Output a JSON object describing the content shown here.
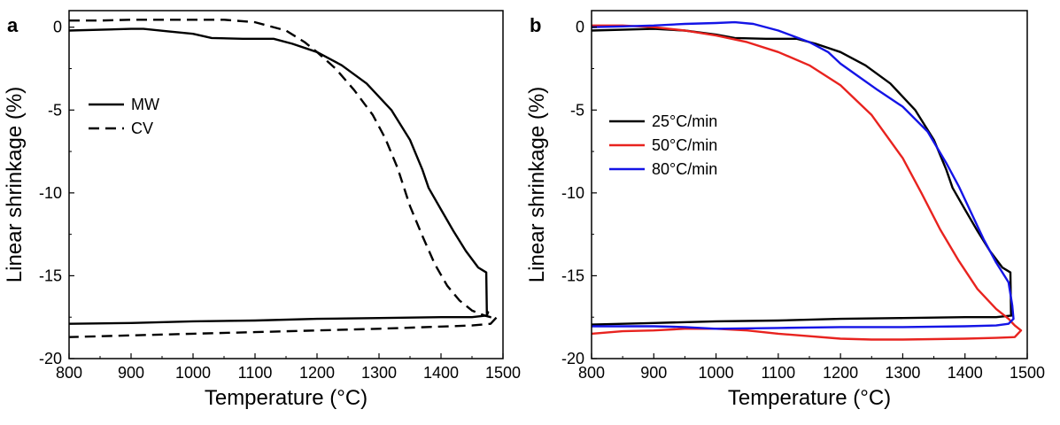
{
  "chart_data": [
    {
      "type": "line",
      "panel_label": "a",
      "xlabel": "Temperature (°C)",
      "ylabel": "Linear shrinkage (%)",
      "xlim": [
        800,
        1500
      ],
      "ylim": [
        -20,
        1
      ],
      "xticks": [
        800,
        900,
        1000,
        1100,
        1200,
        1300,
        1400,
        1500
      ],
      "yticks": [
        0,
        -5,
        -10,
        -15,
        -20
      ],
      "legend_position": "left",
      "series": [
        {
          "name": "MW",
          "color": "#000000",
          "dash": "solid",
          "points": [
            [
              800,
              -0.2
            ],
            [
              900,
              -0.1
            ],
            [
              920,
              -0.1
            ],
            [
              960,
              -0.25
            ],
            [
              1000,
              -0.4
            ],
            [
              1030,
              -0.65
            ],
            [
              1080,
              -0.7
            ],
            [
              1130,
              -0.7
            ],
            [
              1160,
              -1.0
            ],
            [
              1200,
              -1.5
            ],
            [
              1240,
              -2.3
            ],
            [
              1280,
              -3.4
            ],
            [
              1320,
              -5.0
            ],
            [
              1350,
              -6.8
            ],
            [
              1370,
              -8.6
            ],
            [
              1380,
              -9.7
            ],
            [
              1400,
              -11.0
            ],
            [
              1420,
              -12.3
            ],
            [
              1440,
              -13.5
            ],
            [
              1460,
              -14.5
            ],
            [
              1473,
              -14.8
            ],
            [
              1474,
              -17.3
            ],
            [
              1476,
              -17.2
            ],
            [
              1474,
              -17.4
            ],
            [
              1450,
              -17.5
            ],
            [
              1400,
              -17.5
            ],
            [
              1300,
              -17.55
            ],
            [
              1200,
              -17.6
            ],
            [
              1100,
              -17.7
            ],
            [
              1000,
              -17.75
            ],
            [
              900,
              -17.85
            ],
            [
              800,
              -17.9
            ]
          ]
        },
        {
          "name": "CV",
          "color": "#000000",
          "dash": "dashed",
          "points": [
            [
              800,
              0.4
            ],
            [
              850,
              0.4
            ],
            [
              900,
              0.45
            ],
            [
              950,
              0.45
            ],
            [
              1000,
              0.45
            ],
            [
              1050,
              0.45
            ],
            [
              1100,
              0.3
            ],
            [
              1150,
              -0.2
            ],
            [
              1180,
              -0.9
            ],
            [
              1200,
              -1.5
            ],
            [
              1230,
              -2.5
            ],
            [
              1260,
              -3.8
            ],
            [
              1290,
              -5.3
            ],
            [
              1310,
              -6.7
            ],
            [
              1330,
              -8.5
            ],
            [
              1350,
              -10.8
            ],
            [
              1370,
              -12.6
            ],
            [
              1390,
              -14.3
            ],
            [
              1410,
              -15.6
            ],
            [
              1430,
              -16.5
            ],
            [
              1450,
              -17.1
            ],
            [
              1470,
              -17.4
            ],
            [
              1480,
              -17.5
            ],
            [
              1490,
              -17.5
            ],
            [
              1480,
              -17.9
            ],
            [
              1450,
              -18.0
            ],
            [
              1300,
              -18.2
            ],
            [
              1200,
              -18.3
            ],
            [
              1100,
              -18.4
            ],
            [
              1000,
              -18.5
            ],
            [
              900,
              -18.6
            ],
            [
              800,
              -18.7
            ]
          ]
        }
      ]
    },
    {
      "type": "line",
      "panel_label": "b",
      "xlabel": "Temperature (°C)",
      "ylabel": "Linear shrinkage (%)",
      "xlim": [
        800,
        1500
      ],
      "ylim": [
        -20,
        1
      ],
      "xticks": [
        800,
        900,
        1000,
        1100,
        1200,
        1300,
        1400,
        1500
      ],
      "yticks": [
        0,
        -5,
        -10,
        -15,
        -20
      ],
      "legend_position": "left",
      "series": [
        {
          "name": "25°C/min",
          "color": "#000000",
          "dash": "solid",
          "points": [
            [
              800,
              -0.2
            ],
            [
              900,
              -0.1
            ],
            [
              950,
              -0.2
            ],
            [
              1000,
              -0.45
            ],
            [
              1030,
              -0.65
            ],
            [
              1080,
              -0.7
            ],
            [
              1130,
              -0.7
            ],
            [
              1160,
              -1.0
            ],
            [
              1200,
              -1.5
            ],
            [
              1240,
              -2.3
            ],
            [
              1280,
              -3.4
            ],
            [
              1320,
              -5.0
            ],
            [
              1350,
              -6.8
            ],
            [
              1370,
              -8.6
            ],
            [
              1380,
              -9.7
            ],
            [
              1400,
              -11.0
            ],
            [
              1420,
              -12.3
            ],
            [
              1440,
              -13.5
            ],
            [
              1460,
              -14.5
            ],
            [
              1473,
              -14.8
            ],
            [
              1474,
              -17.3
            ],
            [
              1476,
              -17.4
            ],
            [
              1450,
              -17.5
            ],
            [
              1400,
              -17.5
            ],
            [
              1300,
              -17.55
            ],
            [
              1200,
              -17.6
            ],
            [
              1100,
              -17.7
            ],
            [
              1000,
              -17.75
            ],
            [
              900,
              -17.85
            ],
            [
              800,
              -17.95
            ]
          ]
        },
        {
          "name": "50°C/min",
          "color": "#e8231f",
          "dash": "solid",
          "points": [
            [
              800,
              0.1
            ],
            [
              850,
              0.1
            ],
            [
              900,
              0.0
            ],
            [
              950,
              -0.2
            ],
            [
              1000,
              -0.5
            ],
            [
              1050,
              -0.9
            ],
            [
              1100,
              -1.5
            ],
            [
              1150,
              -2.3
            ],
            [
              1200,
              -3.5
            ],
            [
              1250,
              -5.3
            ],
            [
              1300,
              -7.9
            ],
            [
              1330,
              -10.0
            ],
            [
              1360,
              -12.2
            ],
            [
              1390,
              -14.1
            ],
            [
              1420,
              -15.8
            ],
            [
              1450,
              -17.0
            ],
            [
              1470,
              -17.6
            ],
            [
              1480,
              -18.0
            ],
            [
              1490,
              -18.3
            ],
            [
              1480,
              -18.7
            ],
            [
              1450,
              -18.75
            ],
            [
              1400,
              -18.8
            ],
            [
              1300,
              -18.85
            ],
            [
              1250,
              -18.85
            ],
            [
              1200,
              -18.8
            ],
            [
              1100,
              -18.5
            ],
            [
              1050,
              -18.3
            ],
            [
              1000,
              -18.2
            ],
            [
              950,
              -18.2
            ],
            [
              900,
              -18.3
            ],
            [
              850,
              -18.35
            ],
            [
              800,
              -18.5
            ]
          ]
        },
        {
          "name": "80°C/min",
          "color": "#1414e6",
          "dash": "solid",
          "points": [
            [
              800,
              0.0
            ],
            [
              850,
              0.05
            ],
            [
              900,
              0.1
            ],
            [
              950,
              0.2
            ],
            [
              1000,
              0.25
            ],
            [
              1030,
              0.3
            ],
            [
              1060,
              0.2
            ],
            [
              1100,
              -0.2
            ],
            [
              1150,
              -0.9
            ],
            [
              1180,
              -1.5
            ],
            [
              1200,
              -2.2
            ],
            [
              1230,
              -3.0
            ],
            [
              1260,
              -3.8
            ],
            [
              1300,
              -4.8
            ],
            [
              1340,
              -6.3
            ],
            [
              1370,
              -8.2
            ],
            [
              1390,
              -9.6
            ],
            [
              1410,
              -11.2
            ],
            [
              1430,
              -12.8
            ],
            [
              1450,
              -14.2
            ],
            [
              1470,
              -15.4
            ],
            [
              1476,
              -16.8
            ],
            [
              1478,
              -17.6
            ],
            [
              1470,
              -17.9
            ],
            [
              1450,
              -18.0
            ],
            [
              1400,
              -18.05
            ],
            [
              1300,
              -18.1
            ],
            [
              1200,
              -18.1
            ],
            [
              1100,
              -18.15
            ],
            [
              1000,
              -18.2
            ],
            [
              950,
              -18.1
            ],
            [
              900,
              -18.05
            ],
            [
              800,
              -18.05
            ]
          ]
        }
      ]
    }
  ]
}
